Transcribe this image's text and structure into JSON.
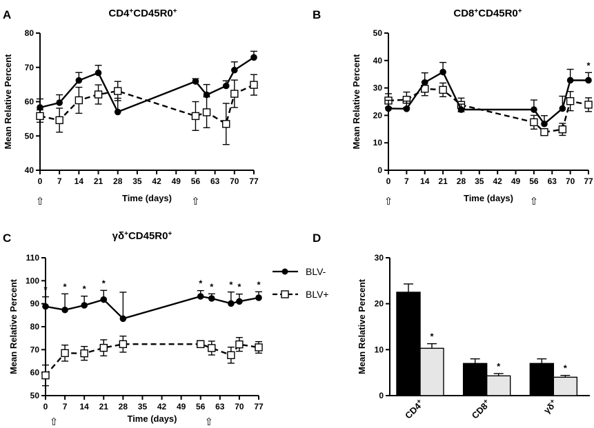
{
  "colors": {
    "axis": "#000000",
    "blv_neg": "#000000",
    "blv_pos_fill": "#e6e6e6",
    "bar_neg": "#000000"
  },
  "legend": {
    "neg_label": "BLV-",
    "pos_label": "BLV+"
  },
  "chart_data": [
    {
      "panel": "A",
      "type": "line",
      "title_main": "CD4",
      "title_sup1": "+",
      "title_mid": "CD45R0",
      "title_sup2": "+",
      "xlabel": "Time (days)",
      "ylabel": "Mean Relative Percent",
      "xlim": [
        0,
        77
      ],
      "ylim": [
        40,
        80
      ],
      "xticks": [
        0,
        7,
        14,
        21,
        28,
        35,
        42,
        49,
        56,
        63,
        70,
        77
      ],
      "yticks": [
        40,
        50,
        60,
        70,
        80
      ],
      "arrows": [
        0,
        56
      ],
      "arrow_glyph": "⇧",
      "series": [
        {
          "name": "BLV-",
          "x": [
            0,
            7,
            14,
            21,
            28,
            56,
            60,
            67,
            70,
            77
          ],
          "y": [
            58.3,
            59.7,
            66.2,
            68.4,
            57.0,
            65.9,
            62.0,
            64.6,
            69.2,
            72.9
          ],
          "err": [
            2.5,
            2.3,
            2.3,
            2.2,
            4.0,
            0.8,
            3.0,
            1.5,
            2.4,
            1.8
          ]
        },
        {
          "name": "BLV+",
          "x": [
            0,
            7,
            14,
            21,
            28,
            56,
            60,
            67,
            70,
            77
          ],
          "y": [
            55.8,
            54.6,
            60.4,
            62.1,
            63.1,
            55.8,
            56.9,
            53.5,
            62.3,
            64.9
          ],
          "err": [
            1.8,
            3.5,
            3.8,
            2.8,
            2.8,
            4.2,
            4.5,
            6.0,
            4.0,
            3.0
          ]
        }
      ],
      "annotations": []
    },
    {
      "panel": "B",
      "type": "line",
      "title_main": "CD8",
      "title_sup1": "+",
      "title_mid": "CD45R0",
      "title_sup2": "+",
      "xlabel": "Time (days)",
      "ylabel": "Mean Relative Percent",
      "xlim": [
        0,
        77
      ],
      "ylim": [
        0,
        50
      ],
      "xticks": [
        0,
        7,
        14,
        21,
        28,
        35,
        42,
        49,
        56,
        63,
        70,
        77
      ],
      "yticks": [
        0,
        10,
        20,
        30,
        40,
        50
      ],
      "arrows": [
        0,
        56
      ],
      "arrow_glyph": "⇧",
      "series": [
        {
          "name": "BLV-",
          "x": [
            0,
            7,
            14,
            21,
            28,
            56,
            60,
            67,
            70,
            77
          ],
          "y": [
            22.5,
            22.4,
            32.0,
            35.8,
            22.1,
            22.1,
            16.9,
            22.5,
            32.8,
            32.8
          ],
          "err": [
            3.0,
            2.8,
            3.5,
            3.5,
            2.0,
            3.5,
            3.0,
            4.5,
            4.0,
            2.8
          ]
        },
        {
          "name": "BLV+",
          "x": [
            0,
            7,
            14,
            21,
            28,
            56,
            60,
            67,
            70,
            77
          ],
          "y": [
            25.4,
            25.7,
            29.7,
            29.3,
            23.8,
            17.5,
            13.9,
            14.9,
            25.2,
            23.9
          ],
          "err": [
            2.5,
            2.8,
            2.5,
            2.5,
            2.5,
            2.5,
            1.0,
            2.2,
            3.5,
            2.5
          ]
        }
      ],
      "annotations": [
        {
          "x": 77,
          "text": "*"
        }
      ]
    },
    {
      "panel": "C",
      "type": "line",
      "title_main": "γδ",
      "title_sup1": "+",
      "title_mid": "CD45R0",
      "title_sup2": "+",
      "xlabel": "Time (days)",
      "ylabel": "Mean Relative Percent",
      "xlim": [
        0,
        77
      ],
      "ylim": [
        50,
        110
      ],
      "xticks": [
        0,
        7,
        14,
        21,
        28,
        35,
        42,
        49,
        56,
        63,
        70,
        77
      ],
      "yticks": [
        50,
        60,
        70,
        80,
        90,
        100,
        110
      ],
      "arrows": [
        0,
        56
      ],
      "arrow_glyph": "⇧",
      "series": [
        {
          "name": "BLV-",
          "x": [
            0,
            7,
            14,
            21,
            28,
            56,
            60,
            67,
            70,
            77
          ],
          "y": [
            88.8,
            87.3,
            89.3,
            91.8,
            83.5,
            93.2,
            92.3,
            90.1,
            91.0,
            92.6
          ],
          "err": [
            4.2,
            7.0,
            4.0,
            4.0,
            11.5,
            2.5,
            2.0,
            5.0,
            3.2,
            2.6
          ]
        },
        {
          "name": "BLV+",
          "x": [
            0,
            7,
            14,
            21,
            28,
            56,
            60,
            67,
            70,
            77
          ],
          "y": [
            58.8,
            68.5,
            68.4,
            70.8,
            72.4,
            72.4,
            70.7,
            67.6,
            72.3,
            71.0
          ],
          "err": [
            4.5,
            3.5,
            3.0,
            3.5,
            3.5,
            1.5,
            3.0,
            3.5,
            3.0,
            2.5
          ]
        }
      ],
      "annotations": [
        {
          "x": 0,
          "text": "*"
        },
        {
          "x": 7,
          "text": "*"
        },
        {
          "x": 14,
          "text": "*"
        },
        {
          "x": 21,
          "text": "*"
        },
        {
          "x": 56,
          "text": "*"
        },
        {
          "x": 60,
          "text": "*"
        },
        {
          "x": 67,
          "text": "*"
        },
        {
          "x": 70,
          "text": "*"
        },
        {
          "x": 77,
          "text": "*"
        }
      ]
    },
    {
      "panel": "D",
      "type": "bar",
      "ylabel": "Mean Relative Percent",
      "ylim": [
        0,
        30
      ],
      "yticks": [
        0,
        10,
        20,
        30
      ],
      "categories": [
        "CD4",
        "CD8",
        "γδ"
      ],
      "category_sup": "+",
      "series": [
        {
          "name": "BLV-",
          "values": [
            22.5,
            7.0,
            7.0
          ],
          "err": [
            1.8,
            1.0,
            1.0
          ]
        },
        {
          "name": "BLV+",
          "values": [
            10.3,
            4.3,
            4.0
          ],
          "err": [
            1.0,
            0.5,
            0.4
          ]
        }
      ],
      "annotations": [
        {
          "category": 0,
          "series": 1,
          "text": "*"
        },
        {
          "category": 1,
          "series": 1,
          "text": "*"
        },
        {
          "category": 2,
          "series": 1,
          "text": "*"
        }
      ]
    }
  ]
}
